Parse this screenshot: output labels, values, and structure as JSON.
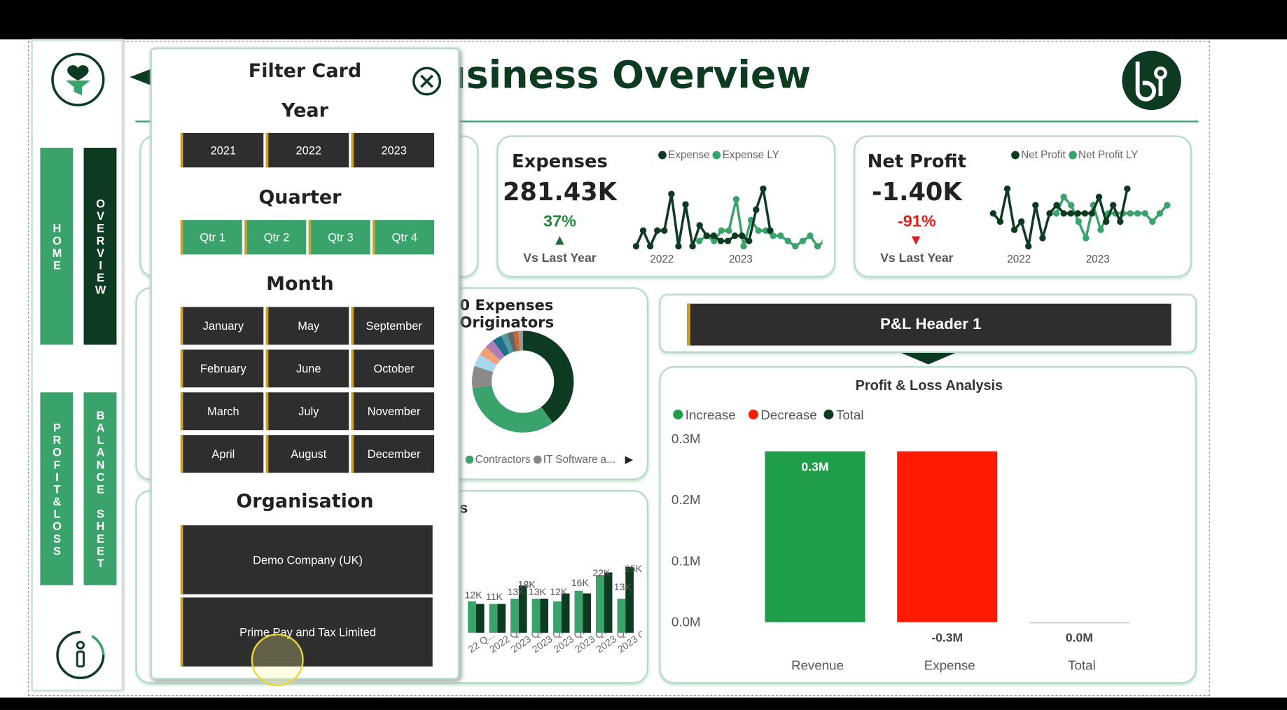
{
  "nav": {
    "items": [
      {
        "label": "HOME",
        "active": false
      },
      {
        "label": "OVERVIEW",
        "active": true
      },
      {
        "label": "PROFIT&LOSS",
        "active": false
      },
      {
        "label": "BALANCE SHEET",
        "active": false
      }
    ],
    "logo_icon": "funnel-heart-icon",
    "info_icon": "info-icon"
  },
  "header": {
    "title": "Business Overview",
    "logo": "bi"
  },
  "expenses": {
    "title": "Expenses",
    "value": "281.43K",
    "change": "37%",
    "change_color": "#1e8a3a",
    "label": "Vs Last Year",
    "legend": [
      "Expense",
      "Expense LY"
    ],
    "years": [
      "2022",
      "2023"
    ],
    "series_current": [
      2,
      5,
      2,
      5,
      5,
      12,
      2,
      10,
      2,
      6,
      4,
      4,
      3,
      3,
      4,
      4,
      3,
      9,
      13,
      5
    ],
    "series_ly": [
      3,
      4,
      3,
      5,
      5,
      11,
      2,
      7,
      5,
      5,
      4,
      4,
      3,
      2,
      3,
      4,
      2,
      3,
      4,
      5
    ]
  },
  "net_profit": {
    "title": "Net Profit",
    "value": "-1.40K",
    "change": "-91%",
    "change_color": "#e0201b",
    "label": "Vs Last Year",
    "legend": [
      "Net Profit",
      "Net Profit LY"
    ],
    "years": [
      "2022",
      "2023"
    ],
    "series_current": [
      5,
      4,
      8,
      3,
      4,
      1,
      6,
      2,
      5,
      6,
      5,
      5,
      5,
      5,
      5,
      7,
      4,
      6,
      4,
      8
    ],
    "series_ly": [
      5,
      7,
      6,
      4,
      2,
      6,
      3,
      5,
      5,
      5,
      5,
      5,
      5,
      4,
      5,
      6
    ]
  },
  "top10": {
    "title": "0 Expenses Originators",
    "legend": [
      "Contractors",
      "IT Software a..."
    ]
  },
  "columns": {
    "title": "s",
    "categories": [
      "22 Q...",
      "2022 Q...",
      "2023 Q...",
      "2023 Q...",
      "2023 Q...",
      "2023 Q...",
      "2023 Q...",
      "2023 Q..."
    ]
  },
  "pl_header": {
    "label": "P&L Header 1"
  },
  "filter": {
    "title": "Filter Card",
    "year_label": "Year",
    "years": [
      "2021",
      "2022",
      "2023"
    ],
    "quarter_label": "Quarter",
    "quarters": [
      "Qtr 1",
      "Qtr 2",
      "Qtr 3",
      "Qtr 4"
    ],
    "month_label": "Month",
    "months": [
      "January",
      "May",
      "September",
      "February",
      "June",
      "October",
      "March",
      "July",
      "November",
      "April",
      "August",
      "December"
    ],
    "org_label": "Organisation",
    "orgs": [
      "Demo Company (UK)",
      "Prime Pay and Tax Limited"
    ]
  },
  "chart_data": [
    {
      "type": "bar",
      "title": "Profit & Loss Analysis",
      "legend": [
        "Increase",
        "Decrease",
        "Total"
      ],
      "legend_colors": [
        "#1e9e48",
        "#ff1a00",
        "#0d3b22"
      ],
      "categories": [
        "Revenue",
        "Expense",
        "Total"
      ],
      "values": [
        0.28,
        -0.28,
        0.0
      ],
      "data_labels": [
        "0.3M",
        "-0.3M",
        "0.0M"
      ],
      "yticks": [
        "0.0M",
        "0.1M",
        "0.2M",
        "0.3M"
      ],
      "ylim": [
        0,
        0.3
      ],
      "legend_position": "top-left"
    },
    {
      "type": "pie",
      "title": "0 Expenses Originators",
      "slices": [
        {
          "name": "",
          "value": 40,
          "color": "#0d3b22"
        },
        {
          "name": "Contractors",
          "value": 33,
          "color": "#3aa36b"
        },
        {
          "name": "IT Software a...",
          "value": 7,
          "color": "#8a8a8a"
        },
        {
          "name": "",
          "value": 4,
          "color": "#a8d8f0"
        },
        {
          "name": "",
          "value": 3,
          "color": "#f4a070"
        },
        {
          "name": "",
          "value": 3,
          "color": "#b07cb8"
        },
        {
          "name": "",
          "value": 3,
          "color": "#1f6f8b"
        },
        {
          "name": "",
          "value": 2,
          "color": "#4aa0a0"
        },
        {
          "name": "",
          "value": 2,
          "color": "#666"
        },
        {
          "name": "",
          "value": 1.5,
          "color": "#d4622a"
        },
        {
          "name": "",
          "value": 1.5,
          "color": "#999"
        }
      ]
    },
    {
      "type": "bar",
      "categories": [
        "22 Q...",
        "2022 Q...",
        "2023 Q...",
        "2023 Q...",
        "2023 Q...",
        "2023 Q...",
        "2023 Q...",
        "2023 Q..."
      ],
      "series": [
        {
          "values": [
            12,
            11,
            13,
            13,
            12,
            16,
            22,
            13
          ],
          "color": "#3aa36b"
        },
        {
          "values": [
            11,
            11,
            18,
            13,
            15,
            15,
            23,
            25
          ],
          "color": "#0d3b22"
        }
      ],
      "data_labels": [
        "12K",
        "11K",
        "13K",
        "18K",
        "13K",
        "12K",
        "16K",
        "22K",
        "13K",
        "25K"
      ]
    }
  ]
}
